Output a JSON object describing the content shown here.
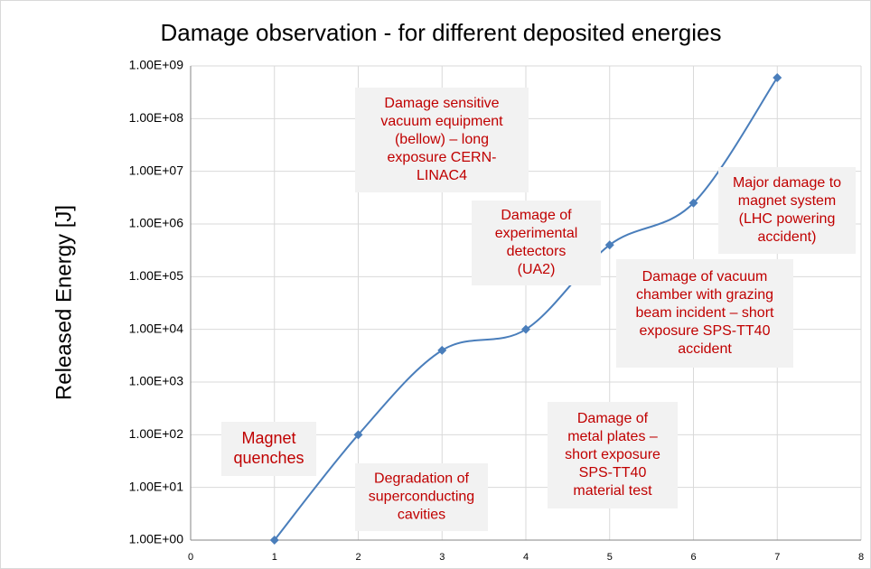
{
  "chart_data": {
    "type": "line",
    "title": "Damage observation - for different deposited energies",
    "y_label": "Released Energy [J]",
    "x": [
      1,
      2,
      3,
      4,
      5,
      6,
      7
    ],
    "series": [
      {
        "name": "Released Energy",
        "color": "#4a7ebb",
        "values": [
          1,
          100,
          4000,
          10000,
          400000,
          2500000,
          600000000
        ]
      }
    ],
    "xlim": [
      0,
      8
    ],
    "xticks": [
      0,
      1,
      2,
      3,
      4,
      5,
      6,
      7,
      8
    ],
    "ylim": [
      1,
      1000000000
    ],
    "log_y": true,
    "yticks": [
      {
        "value": 1,
        "label": "1.00E+00"
      },
      {
        "value": 10,
        "label": "1.00E+01"
      },
      {
        "value": 100,
        "label": "1.00E+02"
      },
      {
        "value": 1000,
        "label": "1.00E+03"
      },
      {
        "value": 10000,
        "label": "1.00E+04"
      },
      {
        "value": 100000,
        "label": "1.00E+05"
      },
      {
        "value": 1000000,
        "label": "1.00E+06"
      },
      {
        "value": 10000000,
        "label": "1.00E+07"
      },
      {
        "value": 100000000,
        "label": "1.00E+08"
      },
      {
        "value": 1000000000,
        "label": "1.00E+09"
      }
    ],
    "grid": true,
    "annotation_color": "#c00000",
    "annotations": [
      [
        "Magnet",
        "quenches"
      ],
      [
        "Degradation of",
        "superconducting",
        "cavities"
      ],
      [
        "Damage sensitive",
        "vacuum equipment",
        "(bellow) – long",
        "exposure CERN-",
        "LINAC4"
      ],
      [
        "Damage of",
        "experimental",
        "detectors",
        "(UA2)"
      ],
      [
        "Damage of",
        "metal plates –",
        "short exposure",
        "SPS-TT40",
        "material test"
      ],
      [
        "Damage of vacuum",
        "chamber with grazing",
        "beam incident – short",
        "exposure SPS-TT40",
        "accident"
      ],
      [
        "Major damage to",
        "magnet system",
        "(LHC powering",
        "accident)"
      ]
    ]
  }
}
